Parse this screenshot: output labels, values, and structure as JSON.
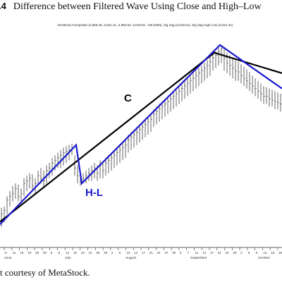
{
  "figure": {
    "number": ".4",
    "title": "Difference between Filtered Wave Using Close and High–Low",
    "credit": "t courtesy of MetaStock."
  },
  "chart_data": {
    "type": "line",
    "legend_text": "NASDAQ Composite (2,955.45, 3,021.41, 2,953.52, 3,019.51, +59.2000), Zig Zag (3,019.51), Zig Zag High Low (3,021.41)",
    "month_labels": [
      "June",
      "July",
      "August",
      "September",
      "October"
    ],
    "day_labels": [
      "9",
      "11",
      "15",
      "19",
      "25",
      "29",
      "6",
      "8",
      "12",
      "15",
      "19",
      "21",
      "26",
      "28",
      "2",
      "6",
      "10",
      "14",
      "17",
      "21",
      "24",
      "27",
      "30",
      "3",
      "7",
      "11",
      "14",
      "17",
      "21",
      "24",
      "28",
      "2",
      "5",
      "9",
      "12",
      "15",
      "19"
    ],
    "annotations": {
      "close_label": "C",
      "high_low_label": "H-L"
    },
    "colors": {
      "close_zigzag": "#000000",
      "high_low_zigzag": "#1a1acc",
      "price_bars": "#555555",
      "axis": "#333333"
    },
    "series": [
      {
        "name": "Zig Zag",
        "points": [
          [
            0,
            2300
          ],
          [
            76,
            2960
          ],
          [
            100,
            2880
          ]
        ]
      },
      {
        "name": "Zig Zag High Low",
        "points": [
          [
            0,
            2290
          ],
          [
            27,
            2600
          ],
          [
            29,
            2450
          ],
          [
            78,
            2990
          ],
          [
            100,
            2820
          ]
        ]
      }
    ],
    "ohlc_bars": [
      [
        0,
        2355,
        2280,
        2330
      ],
      [
        1,
        2360,
        2300,
        2345
      ],
      [
        2,
        2400,
        2330,
        2385
      ],
      [
        3,
        2420,
        2360,
        2400
      ],
      [
        4,
        2440,
        2380,
        2410
      ],
      [
        5,
        2450,
        2390,
        2430
      ],
      [
        6,
        2445,
        2380,
        2400
      ],
      [
        7,
        2430,
        2370,
        2410
      ],
      [
        8,
        2470,
        2400,
        2450
      ],
      [
        9,
        2480,
        2420,
        2460
      ],
      [
        10,
        2490,
        2430,
        2470
      ],
      [
        11,
        2485,
        2420,
        2440
      ],
      [
        12,
        2470,
        2410,
        2450
      ],
      [
        13,
        2500,
        2440,
        2480
      ],
      [
        14,
        2510,
        2450,
        2470
      ],
      [
        15,
        2500,
        2430,
        2460
      ],
      [
        16,
        2520,
        2450,
        2500
      ],
      [
        17,
        2530,
        2470,
        2510
      ],
      [
        18,
        2550,
        2480,
        2530
      ],
      [
        19,
        2560,
        2500,
        2540
      ],
      [
        20,
        2570,
        2510,
        2550
      ],
      [
        21,
        2580,
        2510,
        2560
      ],
      [
        22,
        2590,
        2520,
        2570
      ],
      [
        23,
        2595,
        2530,
        2575
      ],
      [
        24,
        2600,
        2540,
        2580
      ],
      [
        25,
        2605,
        2560,
        2590
      ],
      [
        26,
        2560,
        2480,
        2510
      ],
      [
        27,
        2520,
        2450,
        2480
      ],
      [
        28,
        2480,
        2440,
        2460
      ],
      [
        29,
        2490,
        2450,
        2470
      ],
      [
        30,
        2500,
        2450,
        2480
      ],
      [
        31,
        2510,
        2460,
        2490
      ],
      [
        32,
        2520,
        2460,
        2500
      ],
      [
        33,
        2530,
        2470,
        2510
      ],
      [
        34,
        2520,
        2460,
        2490
      ],
      [
        35,
        2540,
        2470,
        2520
      ],
      [
        36,
        2530,
        2470,
        2500
      ],
      [
        37,
        2550,
        2480,
        2530
      ],
      [
        38,
        2560,
        2490,
        2540
      ],
      [
        39,
        2570,
        2500,
        2550
      ],
      [
        40,
        2580,
        2510,
        2560
      ],
      [
        41,
        2590,
        2520,
        2570
      ],
      [
        42,
        2600,
        2530,
        2580
      ],
      [
        43,
        2610,
        2540,
        2590
      ],
      [
        44,
        2620,
        2550,
        2600
      ],
      [
        45,
        2640,
        2570,
        2620
      ],
      [
        46,
        2650,
        2580,
        2630
      ],
      [
        47,
        2660,
        2590,
        2640
      ],
      [
        48,
        2670,
        2600,
        2650
      ],
      [
        49,
        2680,
        2610,
        2660
      ],
      [
        50,
        2690,
        2620,
        2670
      ],
      [
        51,
        2700,
        2630,
        2680
      ],
      [
        52,
        2710,
        2640,
        2690
      ],
      [
        53,
        2720,
        2650,
        2700
      ],
      [
        54,
        2740,
        2670,
        2720
      ],
      [
        55,
        2750,
        2680,
        2730
      ],
      [
        56,
        2760,
        2690,
        2740
      ],
      [
        57,
        2770,
        2700,
        2750
      ],
      [
        58,
        2780,
        2710,
        2760
      ],
      [
        59,
        2790,
        2720,
        2770
      ],
      [
        60,
        2800,
        2730,
        2780
      ],
      [
        61,
        2810,
        2740,
        2790
      ],
      [
        62,
        2820,
        2750,
        2800
      ],
      [
        63,
        2830,
        2760,
        2810
      ],
      [
        64,
        2840,
        2770,
        2820
      ],
      [
        65,
        2850,
        2780,
        2830
      ],
      [
        66,
        2860,
        2790,
        2840
      ],
      [
        67,
        2870,
        2800,
        2850
      ],
      [
        68,
        2880,
        2810,
        2860
      ],
      [
        69,
        2890,
        2820,
        2870
      ],
      [
        70,
        2900,
        2830,
        2880
      ],
      [
        71,
        2910,
        2840,
        2890
      ],
      [
        72,
        2920,
        2850,
        2900
      ],
      [
        73,
        2930,
        2860,
        2910
      ],
      [
        74,
        2945,
        2870,
        2925
      ],
      [
        75,
        2955,
        2890,
        2940
      ],
      [
        76,
        2965,
        2900,
        2950
      ],
      [
        77,
        2980,
        2910,
        2965
      ],
      [
        78,
        2990,
        2920,
        2975
      ],
      [
        79,
        2975,
        2890,
        2940
      ],
      [
        80,
        2960,
        2880,
        2920
      ],
      [
        81,
        2950,
        2870,
        2910
      ],
      [
        82,
        2940,
        2860,
        2900
      ],
      [
        83,
        2930,
        2850,
        2890
      ],
      [
        84,
        2925,
        2850,
        2885
      ],
      [
        85,
        2915,
        2840,
        2870
      ],
      [
        86,
        2905,
        2830,
        2860
      ],
      [
        87,
        2895,
        2820,
        2850
      ],
      [
        88,
        2885,
        2810,
        2840
      ],
      [
        89,
        2870,
        2800,
        2830
      ],
      [
        90,
        2860,
        2790,
        2820
      ],
      [
        91,
        2850,
        2780,
        2810
      ],
      [
        92,
        2840,
        2770,
        2800
      ],
      [
        93,
        2830,
        2760,
        2790
      ],
      [
        94,
        2825,
        2760,
        2790
      ],
      [
        95,
        2820,
        2750,
        2780
      ],
      [
        96,
        2815,
        2750,
        2775
      ],
      [
        97,
        2810,
        2740,
        2770
      ],
      [
        98,
        2805,
        2740,
        2765
      ],
      [
        99,
        2800,
        2730,
        2760
      ]
    ],
    "ylim": [
      2200,
      3050
    ],
    "xlim": [
      0,
      100
    ],
    "grid": false
  }
}
